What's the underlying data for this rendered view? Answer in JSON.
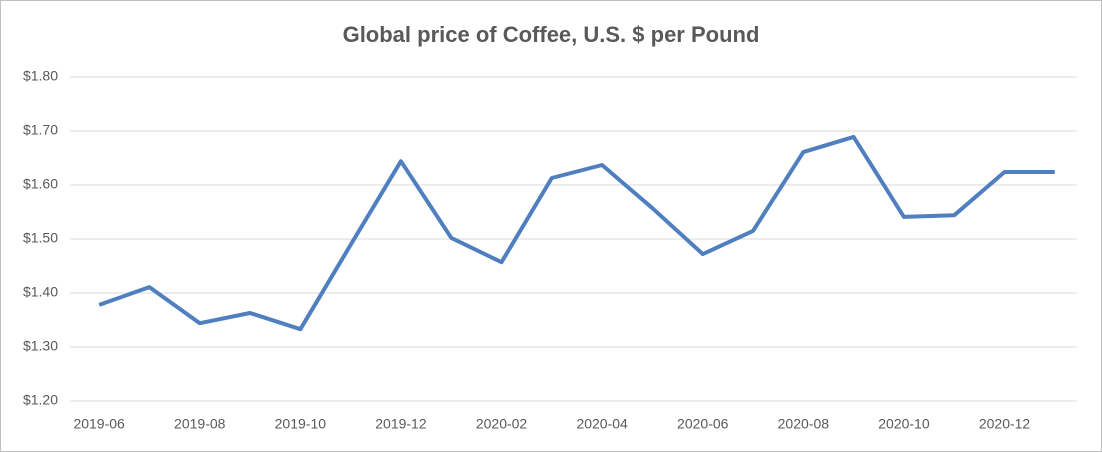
{
  "chart_data": {
    "type": "line",
    "title": "Global price of Coffee, U.S. $ per Pound",
    "categories": [
      "2019-06",
      null,
      "2019-08",
      null,
      "2019-10",
      null,
      "2019-12",
      null,
      "2020-02",
      null,
      "2020-04",
      null,
      "2020-06",
      null,
      "2020-08",
      null,
      "2020-10",
      null,
      "2020-12",
      null
    ],
    "values": [
      1.378,
      1.411,
      1.344,
      1.363,
      1.333,
      1.489,
      1.644,
      1.502,
      1.457,
      1.613,
      1.637,
      1.557,
      1.472,
      1.515,
      1.661,
      1.689,
      1.541,
      1.544,
      1.624,
      1.624
    ],
    "color": "#4f7fbf",
    "ylim": [
      1.2,
      1.8
    ],
    "yticks": [
      {
        "value": 1.2,
        "label": "$1.20"
      },
      {
        "value": 1.3,
        "label": "$1.30"
      },
      {
        "value": 1.4,
        "label": "$1.40"
      },
      {
        "value": 1.5,
        "label": "$1.50"
      },
      {
        "value": 1.6,
        "label": "$1.60"
      },
      {
        "value": 1.7,
        "label": "$1.70"
      },
      {
        "value": 1.8,
        "label": "$1.80"
      }
    ],
    "grid": true
  }
}
